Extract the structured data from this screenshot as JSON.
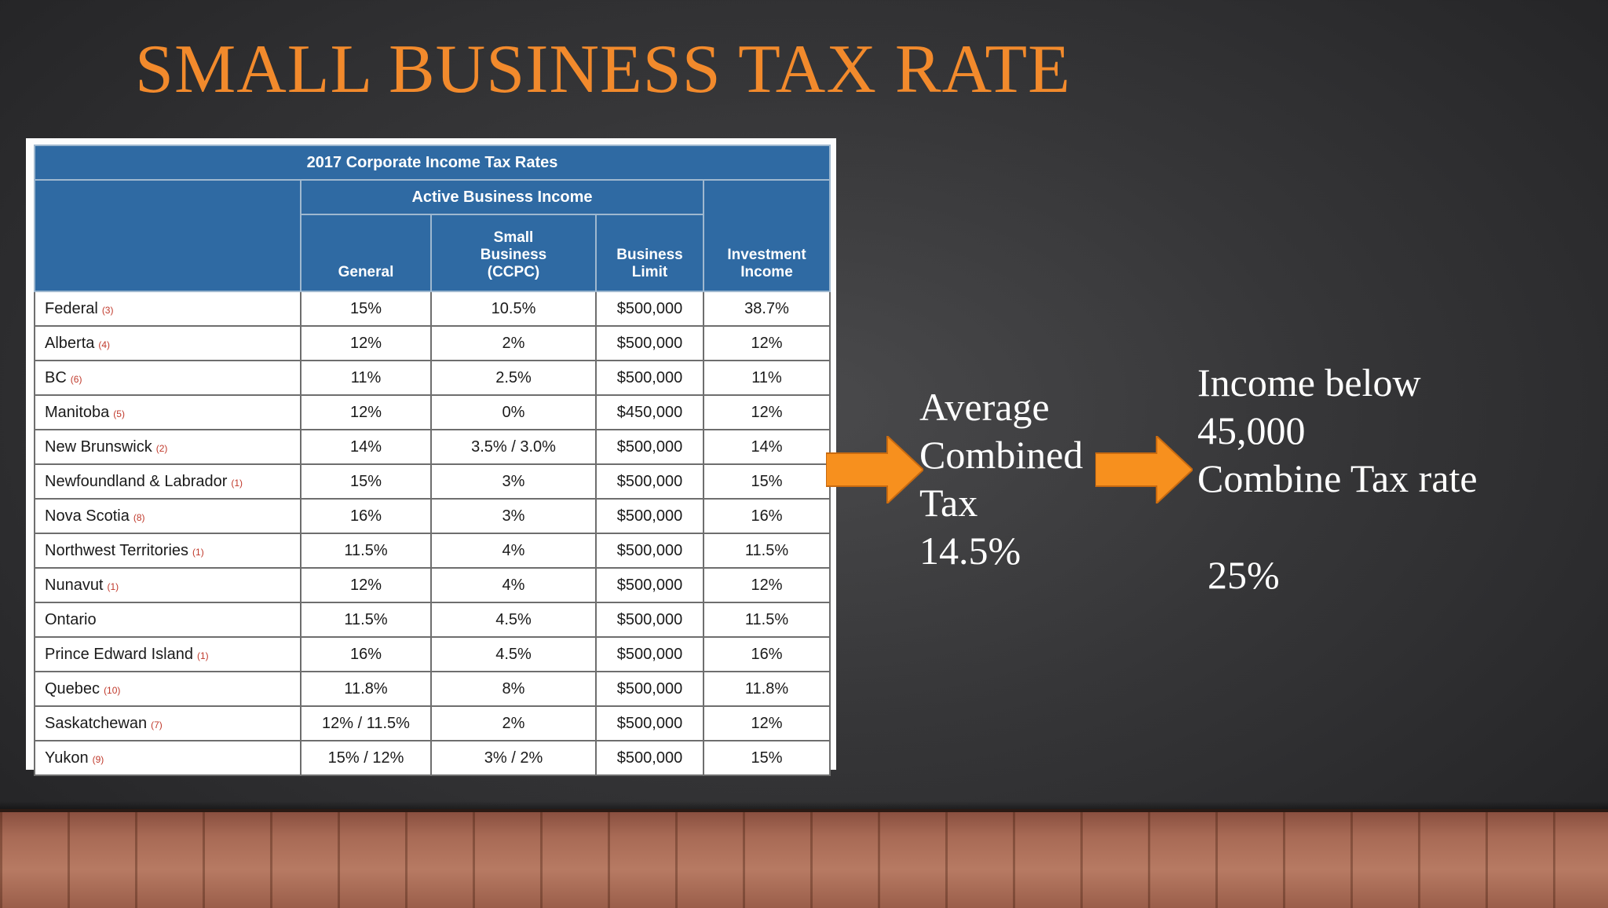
{
  "slide": {
    "title": "SMALL BUSINESS TAX RATE"
  },
  "table": {
    "caption": "2017 Corporate Income Tax Rates",
    "group_header": "Active Business Income",
    "columns": {
      "general": "General",
      "small_business": [
        "Small",
        "Business",
        "(CCPC)"
      ],
      "business_limit": [
        "Business",
        "Limit"
      ],
      "investment_income": [
        "Investment",
        "Income"
      ]
    },
    "rows": [
      {
        "province": "Federal",
        "note": "(3)",
        "general": "15%",
        "small_business": "10.5%",
        "limit": "$500,000",
        "investment": "38.7%"
      },
      {
        "province": "Alberta",
        "note": "(4)",
        "general": "12%",
        "small_business": "2%",
        "limit": "$500,000",
        "investment": "12%"
      },
      {
        "province": "BC",
        "note": "(6)",
        "general": "11%",
        "small_business": "2.5%",
        "limit": "$500,000",
        "investment": "11%"
      },
      {
        "province": "Manitoba",
        "note": "(5)",
        "general": "12%",
        "small_business": "0%",
        "limit": "$450,000",
        "investment": "12%"
      },
      {
        "province": "New Brunswick",
        "note": "(2)",
        "general": "14%",
        "small_business": "3.5% / 3.0%",
        "limit": "$500,000",
        "investment": "14%"
      },
      {
        "province": "Newfoundland & Labrador",
        "note": "(1)",
        "general": "15%",
        "small_business": "3%",
        "limit": "$500,000",
        "investment": "15%"
      },
      {
        "province": "Nova Scotia",
        "note": "(8)",
        "general": "16%",
        "small_business": "3%",
        "limit": "$500,000",
        "investment": "16%"
      },
      {
        "province": "Northwest Territories",
        "note": "(1)",
        "general": "11.5%",
        "small_business": "4%",
        "limit": "$500,000",
        "investment": "11.5%"
      },
      {
        "province": "Nunavut",
        "note": "(1)",
        "general": "12%",
        "small_business": "4%",
        "limit": "$500,000",
        "investment": "12%"
      },
      {
        "province": "Ontario",
        "note": "",
        "general": "11.5%",
        "small_business": "4.5%",
        "limit": "$500,000",
        "investment": "11.5%"
      },
      {
        "province": "Prince Edward Island",
        "note": "(1)",
        "general": "16%",
        "small_business": "4.5%",
        "limit": "$500,000",
        "investment": "16%"
      },
      {
        "province": "Quebec",
        "note": "(10)",
        "general": "11.8%",
        "small_business": "8%",
        "limit": "$500,000",
        "investment": "11.8%"
      },
      {
        "province": "Saskatchewan",
        "note": "(7)",
        "general": "12% / 11.5%",
        "small_business": "2%",
        "limit": "$500,000",
        "investment": "12%"
      },
      {
        "province": "Yukon",
        "note": "(9)",
        "general": "15% / 12%",
        "small_business": "3% / 2%",
        "limit": "$500,000",
        "investment": "15%"
      }
    ]
  },
  "notes": {
    "average": [
      "Average",
      "Combined",
      "Tax",
      "14.5%"
    ],
    "income": [
      "Income below",
      "45,000",
      "Combine Tax rate"
    ],
    "income_rate": "25%"
  },
  "colors": {
    "title": "#f28a2c",
    "table_header": "#2f6aa3",
    "arrow": "#f7901e",
    "footnote": "#c0392b"
  }
}
